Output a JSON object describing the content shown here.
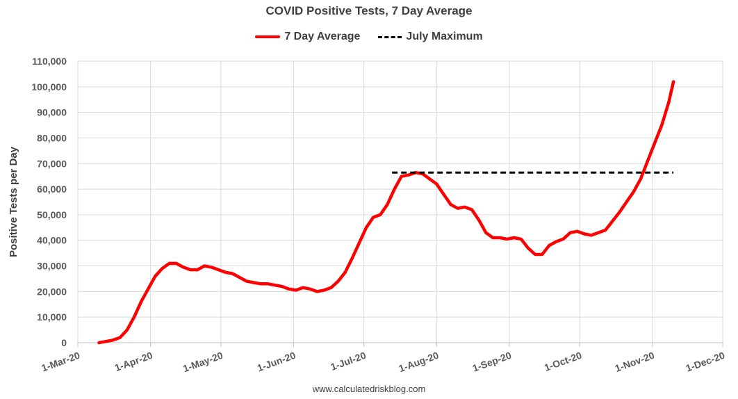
{
  "source": "www.calculatedriskblog.com",
  "chart_data": {
    "type": "line",
    "title": "COVID Positive Tests, 7 Day Average",
    "xlabel": "",
    "ylabel": "Positive Tests per Day",
    "ylim": [
      0,
      110000
    ],
    "yticks": [
      "0",
      "10,000",
      "20,000",
      "30,000",
      "40,000",
      "50,000",
      "60,000",
      "70,000",
      "80,000",
      "90,000",
      "100,000",
      "110,000"
    ],
    "xticks": [
      "1-Mar-20",
      "1-Apr-20",
      "1-May-20",
      "1-Jun-20",
      "1-Jul-20",
      "1-Aug-20",
      "1-Sep-20",
      "1-Oct-20",
      "1-Nov-20",
      "1-Dec-20"
    ],
    "xlim": [
      "2020-03-01",
      "2020-12-01"
    ],
    "grid": true,
    "legend_position": "top",
    "series": [
      {
        "name": "7 Day Average",
        "color": "#ff0000",
        "style": "solid",
        "points": [
          [
            "2020-03-10",
            0
          ],
          [
            "2020-03-13",
            500
          ],
          [
            "2020-03-16",
            1000
          ],
          [
            "2020-03-19",
            2000
          ],
          [
            "2020-03-22",
            5000
          ],
          [
            "2020-03-25",
            10000
          ],
          [
            "2020-03-28",
            16000
          ],
          [
            "2020-03-31",
            21000
          ],
          [
            "2020-04-03",
            26000
          ],
          [
            "2020-04-06",
            29000
          ],
          [
            "2020-04-09",
            31000
          ],
          [
            "2020-04-12",
            31000
          ],
          [
            "2020-04-15",
            29500
          ],
          [
            "2020-04-18",
            28500
          ],
          [
            "2020-04-21",
            28500
          ],
          [
            "2020-04-24",
            30000
          ],
          [
            "2020-04-27",
            29500
          ],
          [
            "2020-04-30",
            28500
          ],
          [
            "2020-05-03",
            27500
          ],
          [
            "2020-05-06",
            27000
          ],
          [
            "2020-05-09",
            25500
          ],
          [
            "2020-05-12",
            24000
          ],
          [
            "2020-05-15",
            23500
          ],
          [
            "2020-05-18",
            23000
          ],
          [
            "2020-05-21",
            23000
          ],
          [
            "2020-05-24",
            22500
          ],
          [
            "2020-05-27",
            22000
          ],
          [
            "2020-05-30",
            21000
          ],
          [
            "2020-06-02",
            20500
          ],
          [
            "2020-06-05",
            21500
          ],
          [
            "2020-06-08",
            21000
          ],
          [
            "2020-06-11",
            20000
          ],
          [
            "2020-06-14",
            20500
          ],
          [
            "2020-06-17",
            21500
          ],
          [
            "2020-06-20",
            24000
          ],
          [
            "2020-06-23",
            27500
          ],
          [
            "2020-06-26",
            33000
          ],
          [
            "2020-06-29",
            39000
          ],
          [
            "2020-07-02",
            45000
          ],
          [
            "2020-07-05",
            49000
          ],
          [
            "2020-07-08",
            50000
          ],
          [
            "2020-07-11",
            54000
          ],
          [
            "2020-07-14",
            60000
          ],
          [
            "2020-07-17",
            65000
          ],
          [
            "2020-07-20",
            65500
          ],
          [
            "2020-07-23",
            66500
          ],
          [
            "2020-07-26",
            66000
          ],
          [
            "2020-07-29",
            64000
          ],
          [
            "2020-08-01",
            62000
          ],
          [
            "2020-08-04",
            58000
          ],
          [
            "2020-08-07",
            54000
          ],
          [
            "2020-08-10",
            52500
          ],
          [
            "2020-08-13",
            53000
          ],
          [
            "2020-08-16",
            52000
          ],
          [
            "2020-08-19",
            48000
          ],
          [
            "2020-08-22",
            43000
          ],
          [
            "2020-08-25",
            41000
          ],
          [
            "2020-08-28",
            41000
          ],
          [
            "2020-08-31",
            40500
          ],
          [
            "2020-09-03",
            41000
          ],
          [
            "2020-09-06",
            40500
          ],
          [
            "2020-09-09",
            37000
          ],
          [
            "2020-09-12",
            34500
          ],
          [
            "2020-09-15",
            34500
          ],
          [
            "2020-09-18",
            38000
          ],
          [
            "2020-09-21",
            39500
          ],
          [
            "2020-09-24",
            40500
          ],
          [
            "2020-09-27",
            43000
          ],
          [
            "2020-09-30",
            43500
          ],
          [
            "2020-10-03",
            42500
          ],
          [
            "2020-10-06",
            42000
          ],
          [
            "2020-10-09",
            43000
          ],
          [
            "2020-10-12",
            44000
          ],
          [
            "2020-10-15",
            47500
          ],
          [
            "2020-10-18",
            51000
          ],
          [
            "2020-10-21",
            55000
          ],
          [
            "2020-10-24",
            59000
          ],
          [
            "2020-10-27",
            64000
          ],
          [
            "2020-10-30",
            71000
          ],
          [
            "2020-11-02",
            78000
          ],
          [
            "2020-11-05",
            85000
          ],
          [
            "2020-11-08",
            94000
          ],
          [
            "2020-11-10",
            102000
          ]
        ]
      },
      {
        "name": "July Maximum",
        "color": "#000000",
        "style": "dashed",
        "points": [
          [
            "2020-07-13",
            66500
          ],
          [
            "2020-11-10",
            66500
          ]
        ]
      }
    ]
  }
}
